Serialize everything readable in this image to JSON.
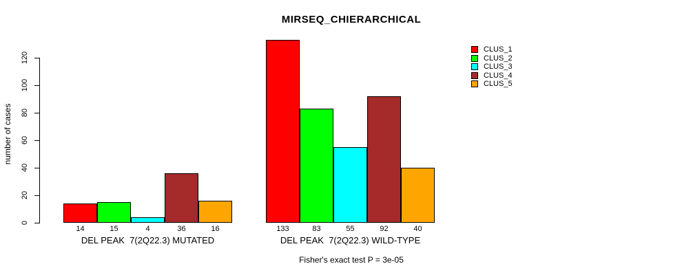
{
  "chart_data": {
    "type": "bar",
    "title": "MIRSEQ_CHIERARCHICAL",
    "ylabel": "number of cases",
    "xlabel": "",
    "ylim": [
      0,
      133
    ],
    "yticks": [
      0,
      20,
      40,
      60,
      80,
      100,
      120
    ],
    "categories": [
      "DEL PEAK  7(2Q22.3) MUTATED",
      "DEL PEAK  7(2Q22.3) WILD-TYPE"
    ],
    "series": [
      {
        "name": "CLUS_1",
        "color": "#FF0000",
        "values": [
          14,
          133
        ]
      },
      {
        "name": "CLUS_2",
        "color": "#00FF00",
        "values": [
          15,
          83
        ]
      },
      {
        "name": "CLUS_3",
        "color": "#00FFFF",
        "values": [
          4,
          55
        ]
      },
      {
        "name": "CLUS_4",
        "color": "#A52A2A",
        "values": [
          36,
          92
        ]
      },
      {
        "name": "CLUS_5",
        "color": "#FFA500",
        "values": [
          16,
          40
        ]
      }
    ],
    "bar_value_labels": [
      [
        "14",
        "15",
        "4",
        "36",
        "16"
      ],
      [
        "133",
        "83",
        "55",
        "92",
        "40"
      ]
    ],
    "legend_position": "top-right",
    "grid": false,
    "axis_color": "#000000",
    "bar_border_color": "#000000",
    "background_color": "#FFFFFF"
  },
  "annotations": {
    "footer": "Fisher's exact test P = 3e-05"
  }
}
